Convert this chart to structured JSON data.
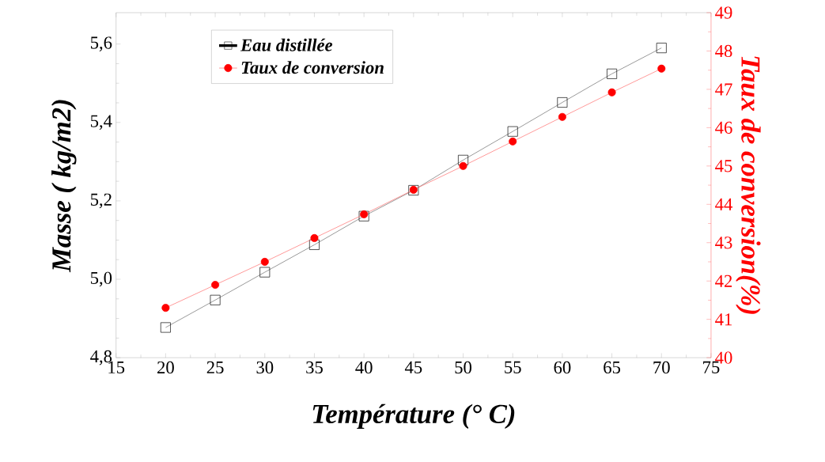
{
  "chart_data": {
    "type": "line",
    "xlabel": "Température (° C)",
    "ylabel": "Masse ( kg/m2)",
    "y2label": "Taux de conversion(%)",
    "x": [
      20,
      25,
      30,
      35,
      40,
      45,
      50,
      55,
      60,
      65,
      70
    ],
    "series": [
      {
        "name": "Eau distillée",
        "color": "#000000",
        "marker": "square",
        "values": [
          4.877,
          4.947,
          5.018,
          5.088,
          5.161,
          5.227,
          5.304,
          5.377,
          5.451,
          5.524,
          5.59
        ]
      },
      {
        "name": "Taux de conversion",
        "color": "#ff0000",
        "marker": "circle",
        "axis": "y2",
        "values": [
          41.3,
          41.9,
          42.5,
          43.12,
          43.74,
          44.38,
          45.0,
          45.64,
          46.28,
          46.92,
          47.54
        ]
      }
    ],
    "xlim": [
      15,
      75
    ],
    "xticks": [
      15,
      20,
      25,
      30,
      35,
      40,
      45,
      50,
      55,
      60,
      65,
      70,
      75
    ],
    "ylim": [
      4.8,
      5.68
    ],
    "yticks": [
      {
        "value": 4.8,
        "label": "4,8"
      },
      {
        "value": 5.0,
        "label": "5,0"
      },
      {
        "value": 5.2,
        "label": "5,2"
      },
      {
        "value": 5.4,
        "label": "5,4"
      },
      {
        "value": 5.6,
        "label": "5,6"
      }
    ],
    "y2lim": [
      40,
      49
    ],
    "y2ticks": [
      40,
      41,
      42,
      43,
      44,
      45,
      46,
      47,
      48,
      49
    ],
    "grid": false,
    "legend": "top left",
    "line_style": "solid"
  }
}
